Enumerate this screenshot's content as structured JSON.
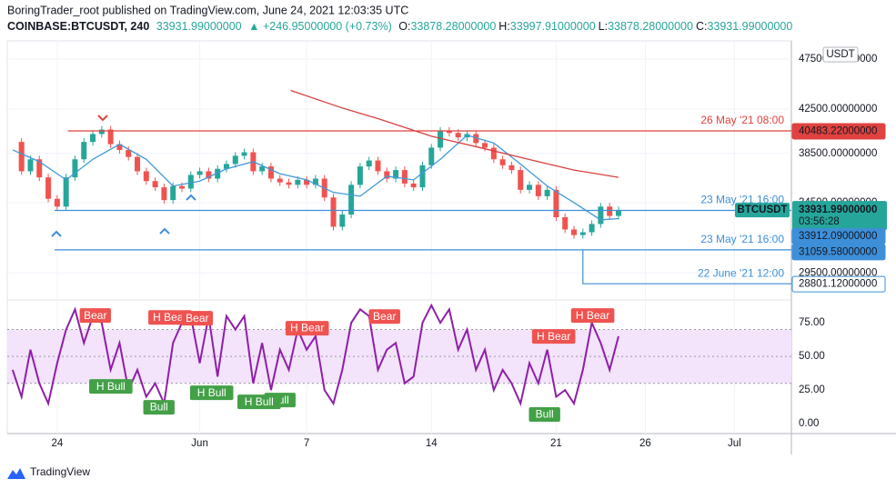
{
  "header": {
    "published": "BoringTrader_root published on TradingView.com, June 24, 2021 12:03:35 UTC",
    "symbol": "COINBASE:BTCUSDT, 240",
    "last": "33931.99000000",
    "change": "▲ +246.95000000 (+0.73%)",
    "ohlc": [
      {
        "label": "O:",
        "value": "33878.28000000"
      },
      {
        "label": "H:",
        "value": "33997.91000000"
      },
      {
        "label": "L:",
        "value": "33878.28000000"
      },
      {
        "label": "C:",
        "value": "33931.99000000"
      }
    ]
  },
  "footer": {
    "brand": "TradingView"
  },
  "chart_data": [
    {
      "type": "candlestick",
      "currency": "USDT",
      "log_scale": true,
      "grid": true,
      "up_color": "#26a69a",
      "down_color": "#ef5350",
      "xlim": [
        -2.8,
        41.2
      ],
      "xticks": [
        {
          "value": 0,
          "label": "24"
        },
        {
          "value": 8,
          "label": "Jun"
        },
        {
          "value": 14,
          "label": "7"
        },
        {
          "value": 21,
          "label": "14"
        },
        {
          "value": 28,
          "label": "21"
        },
        {
          "value": 33,
          "label": "26"
        },
        {
          "value": 38,
          "label": "Jul"
        }
      ],
      "ylim": [
        27780,
        49466
      ],
      "yticks": [
        {
          "value": 47500,
          "label": "47500.00000000"
        },
        {
          "value": 42500,
          "label": "42500.00000000"
        },
        {
          "value": 38500,
          "label": "38500.00000000"
        },
        {
          "value": 34500,
          "label": "34500.00000000"
        },
        {
          "value": 29500,
          "label": "29500.00000000"
        }
      ],
      "x": [
        -2.5,
        -2,
        -1.5,
        -1,
        -0.5,
        0,
        0.5,
        1,
        1.5,
        2,
        2.5,
        3,
        3.5,
        4,
        4.5,
        5,
        5.5,
        6,
        6.5,
        7,
        7.5,
        8,
        8.5,
        9,
        9.5,
        10,
        10.5,
        11,
        11.5,
        12,
        12.5,
        13,
        13.5,
        14,
        14.5,
        15,
        15.5,
        16,
        16.5,
        17,
        17.5,
        18,
        18.5,
        19,
        19.5,
        20,
        20.5,
        21,
        21.5,
        22,
        22.5,
        23,
        23.5,
        24,
        24.5,
        25,
        25.5,
        26,
        26.5,
        27,
        27.5,
        28,
        28.5,
        29,
        29.5,
        30,
        30.5,
        31,
        31.5
      ],
      "values": [
        39500,
        37000,
        38000,
        36500,
        34800,
        34200,
        36500,
        38000,
        39500,
        40200,
        40600,
        39300,
        38800,
        38200,
        37000,
        36200,
        35700,
        34700,
        35800,
        35600,
        36700,
        37000,
        36400,
        37200,
        37600,
        38300,
        38600,
        37000,
        37400,
        36400,
        36100,
        35900,
        36300,
        35900,
        36400,
        34900,
        32700,
        33600,
        35900,
        37400,
        37900,
        37000,
        36400,
        37100,
        36000,
        35700,
        37500,
        39000,
        40500,
        40300,
        39900,
        40200,
        39400,
        39000,
        38000,
        37500,
        37100,
        35500,
        35900,
        35000,
        35500,
        33400,
        32500,
        32100,
        32300,
        32900,
        34200,
        33500,
        33932
      ],
      "moving_averages": [
        {
          "color": "#3f9ad8",
          "x": [
            -2.5,
            -1,
            0.5,
            2,
            3.5,
            5,
            6.5,
            8,
            9.5,
            11,
            12.5,
            14,
            15.5,
            17,
            18.5,
            20,
            21.5,
            23,
            24.5,
            26,
            27.5,
            29,
            30.5,
            31.5
          ],
          "values": [
            38800,
            37800,
            36300,
            38000,
            39300,
            38000,
            35800,
            36200,
            37200,
            37800,
            36800,
            36300,
            35300,
            35000,
            36600,
            36300,
            38000,
            40100,
            39400,
            37600,
            35800,
            34500,
            33200,
            33300
          ]
        },
        {
          "color": "#d94040",
          "x": [
            13.1,
            16,
            18,
            21,
            24,
            27,
            29,
            31.5
          ],
          "values": [
            44300,
            42600,
            41600,
            40000,
            38900,
            37800,
            37100,
            36500
          ]
        }
      ],
      "price_labels": [
        {
          "value": 40483.22,
          "label": "40483.22000000",
          "color": "#e0423f",
          "from": 0.6,
          "caption": "26 May '21 08:00"
        },
        {
          "value": 33931.99,
          "label": "33931.99000000",
          "color": "#26a69a",
          "symbol_tag": "BTCUSDT",
          "countdown": "03:56:28"
        },
        {
          "value": 33912.09,
          "label": "33912.09000000",
          "color": "#3d8fd8",
          "from": -0.15,
          "caption": "23 May '21 16:00"
        },
        {
          "value": 31059.58,
          "label": "31059.58000000",
          "color": "#3d8fd8",
          "from": -0.15,
          "caption": "23 May '21 16:00"
        },
        {
          "value": 28801.12,
          "label": "28801.12000000",
          "color": "#3d8fd8",
          "from": 29.5,
          "caption": "22 June '21 12:00",
          "box": "outline"
        }
      ]
    },
    {
      "type": "line",
      "color": "#8e1fa6",
      "band": [
        30,
        70
      ],
      "band_color": "#f3e3fb",
      "midline": 50,
      "ylim": [
        -6,
        92
      ],
      "yticks": [
        {
          "value": 75,
          "label": "75.00"
        },
        {
          "value": 50,
          "label": "50.00"
        },
        {
          "value": 25,
          "label": "25.00"
        },
        {
          "value": 0,
          "label": "0.00"
        }
      ],
      "x": [
        -2.5,
        -2,
        -1.5,
        -1,
        -0.5,
        0,
        0.5,
        1,
        1.5,
        2,
        2.5,
        3,
        3.5,
        4,
        4.5,
        5,
        5.5,
        6,
        6.5,
        7,
        7.5,
        8,
        8.5,
        9,
        9.5,
        10,
        10.5,
        11,
        11.5,
        12,
        12.5,
        13,
        13.5,
        14,
        14.5,
        15,
        15.5,
        16,
        16.5,
        17,
        17.5,
        18,
        18.5,
        19,
        19.5,
        20,
        20.5,
        21,
        21.5,
        22,
        22.5,
        23,
        23.5,
        24,
        24.5,
        25,
        25.5,
        26,
        26.5,
        27,
        27.5,
        28,
        28.5,
        29,
        29.5,
        30,
        30.5,
        31,
        31.5
      ],
      "values": [
        40,
        20,
        55,
        30,
        15,
        45,
        70,
        85,
        60,
        80,
        75,
        40,
        60,
        25,
        40,
        20,
        30,
        15,
        60,
        75,
        80,
        45,
        80,
        35,
        80,
        70,
        80,
        30,
        60,
        25,
        55,
        40,
        70,
        55,
        65,
        25,
        15,
        40,
        75,
        85,
        80,
        40,
        55,
        60,
        30,
        35,
        75,
        88,
        75,
        85,
        55,
        70,
        40,
        55,
        25,
        40,
        30,
        15,
        45,
        30,
        55,
        20,
        25,
        15,
        40,
        75,
        60,
        40,
        65
      ],
      "annotations": [
        {
          "text": "Bear",
          "x": 2.14,
          "value": 80.4,
          "color": "#ef5350"
        },
        {
          "text": "H Bear",
          "x": 6.33,
          "value": 79,
          "color": "#ef5350"
        },
        {
          "text": "Bear",
          "x": 7.86,
          "value": 78.4,
          "color": "#ef5350"
        },
        {
          "text": "H Bear",
          "x": 14.03,
          "value": 71,
          "color": "#ef5350"
        },
        {
          "text": "Bear",
          "x": 18.37,
          "value": 79.7,
          "color": "#ef5350"
        },
        {
          "text": "H Bear",
          "x": 27.86,
          "value": 64.9,
          "color": "#ef5350"
        },
        {
          "text": "H Bear",
          "x": 30.05,
          "value": 80.4,
          "color": "#ef5350"
        },
        {
          "text": "H Bull",
          "x": 3.01,
          "value": 27.7,
          "color": "#43a047"
        },
        {
          "text": "Bull",
          "x": 5.71,
          "value": 12.2,
          "color": "#43a047"
        },
        {
          "text": "H Bull",
          "x": 8.67,
          "value": 23,
          "color": "#43a047"
        },
        {
          "text": "Bull",
          "x": 12.5,
          "value": 17.6,
          "color": "#43a047"
        },
        {
          "text": "H Bull",
          "x": 11.33,
          "value": 16.2,
          "color": "#43a047"
        },
        {
          "text": "Bull",
          "x": 27.35,
          "value": 6.8,
          "color": "#43a047"
        }
      ]
    }
  ]
}
